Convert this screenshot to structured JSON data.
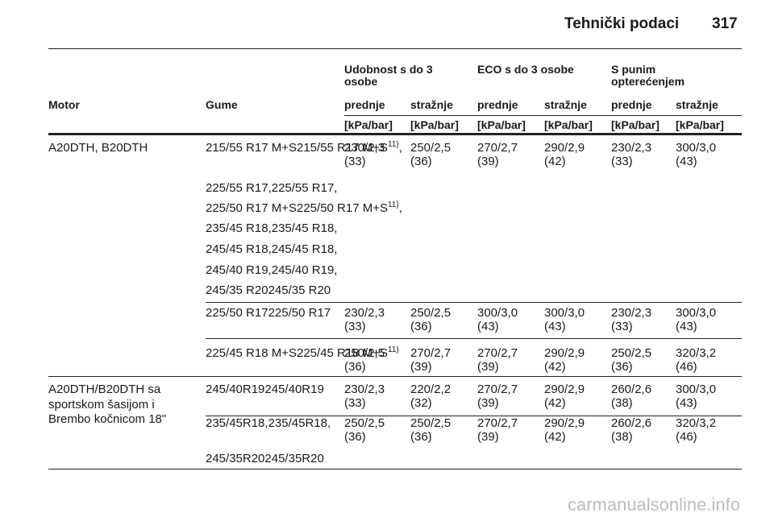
{
  "header": {
    "title": "Tehnički podaci",
    "page": "317"
  },
  "table": {
    "group_headers": [
      "Udobnost s do 3 osobe",
      "ECO s do 3 osobe",
      "S punim opterećenjem"
    ],
    "column_headers": [
      "Motor",
      "Gume",
      "prednje",
      "stražnje",
      "prednje",
      "stražnje",
      "prednje",
      "stražnje"
    ],
    "units": [
      "[kPa/bar]",
      "[kPa/bar]",
      "[kPa/bar]",
      "[kPa/bar]",
      "[kPa/bar]",
      "[kPa/bar]"
    ],
    "blocks": [
      {
        "motor": "A20DTH, B20DTH",
        "subrows": [
          {
            "tyres": [
              {
                "text": "215/55 R17 M+S",
                "sup": "11)",
                "tail": ","
              },
              {
                "text": "225/55 R17,"
              },
              {
                "text": "225/50 R17 M+S",
                "sup": "11)",
                "tail": ","
              },
              {
                "text": "235/45 R18,"
              },
              {
                "text": "245/45 R18,"
              },
              {
                "text": "245/40 R19,"
              },
              {
                "text": "245/35 R20"
              }
            ],
            "values": [
              [
                "230/2,3",
                "(33)"
              ],
              [
                "250/2,5",
                "(36)"
              ],
              [
                "270/2,7",
                "(39)"
              ],
              [
                "290/2,9",
                "(42)"
              ],
              [
                "230/2,3",
                "(33)"
              ],
              [
                "300/3,0",
                "(43)"
              ]
            ]
          },
          {
            "tyres": [
              {
                "text": "225/50 R17"
              }
            ],
            "values": [
              [
                "230/2,3",
                "(33)"
              ],
              [
                "250/2,5",
                "(36)"
              ],
              [
                "300/3,0",
                "(43)"
              ],
              [
                "300/3,0",
                "(43)"
              ],
              [
                "230/2,3",
                "(33)"
              ],
              [
                "300/3,0",
                "(43)"
              ]
            ]
          },
          {
            "tyres": [
              {
                "text": "225/45 R18 M+S",
                "sup": "11)"
              }
            ],
            "values": [
              [
                "250/2,5",
                "(36)"
              ],
              [
                "270/2,7",
                "(39)"
              ],
              [
                "270/2,7",
                "(39)"
              ],
              [
                "290/2,9",
                "(42)"
              ],
              [
                "250/2,5",
                "(36)"
              ],
              [
                "320/3,2",
                "(46)"
              ]
            ]
          }
        ]
      },
      {
        "motor": "A20DTH/B20DTH sa sportskom šasijom i Brembo kočnicom 18\"",
        "subrows": [
          {
            "tyres": [
              {
                "text": "245/40R19"
              }
            ],
            "values": [
              [
                "230/2,3",
                "(33)"
              ],
              [
                "220/2,2",
                "(32)"
              ],
              [
                "270/2,7",
                "(39)"
              ],
              [
                "290/2,9",
                "(42)"
              ],
              [
                "260/2,6",
                "(38)"
              ],
              [
                "300/3,0",
                "(43)"
              ]
            ]
          },
          {
            "tyres": [
              {
                "text": "235/45R18,"
              },
              {
                "text": "245/35R20"
              }
            ],
            "values": [
              [
                "250/2,5",
                "(36)"
              ],
              [
                "250/2,5",
                "(36)"
              ],
              [
                "270/2,7",
                "(39)"
              ],
              [
                "290/2,9",
                "(42)"
              ],
              [
                "260/2,6",
                "(38)"
              ],
              [
                "320/3,2",
                "(46)"
              ]
            ]
          }
        ]
      }
    ]
  },
  "watermark": "carmanualsonline.info"
}
